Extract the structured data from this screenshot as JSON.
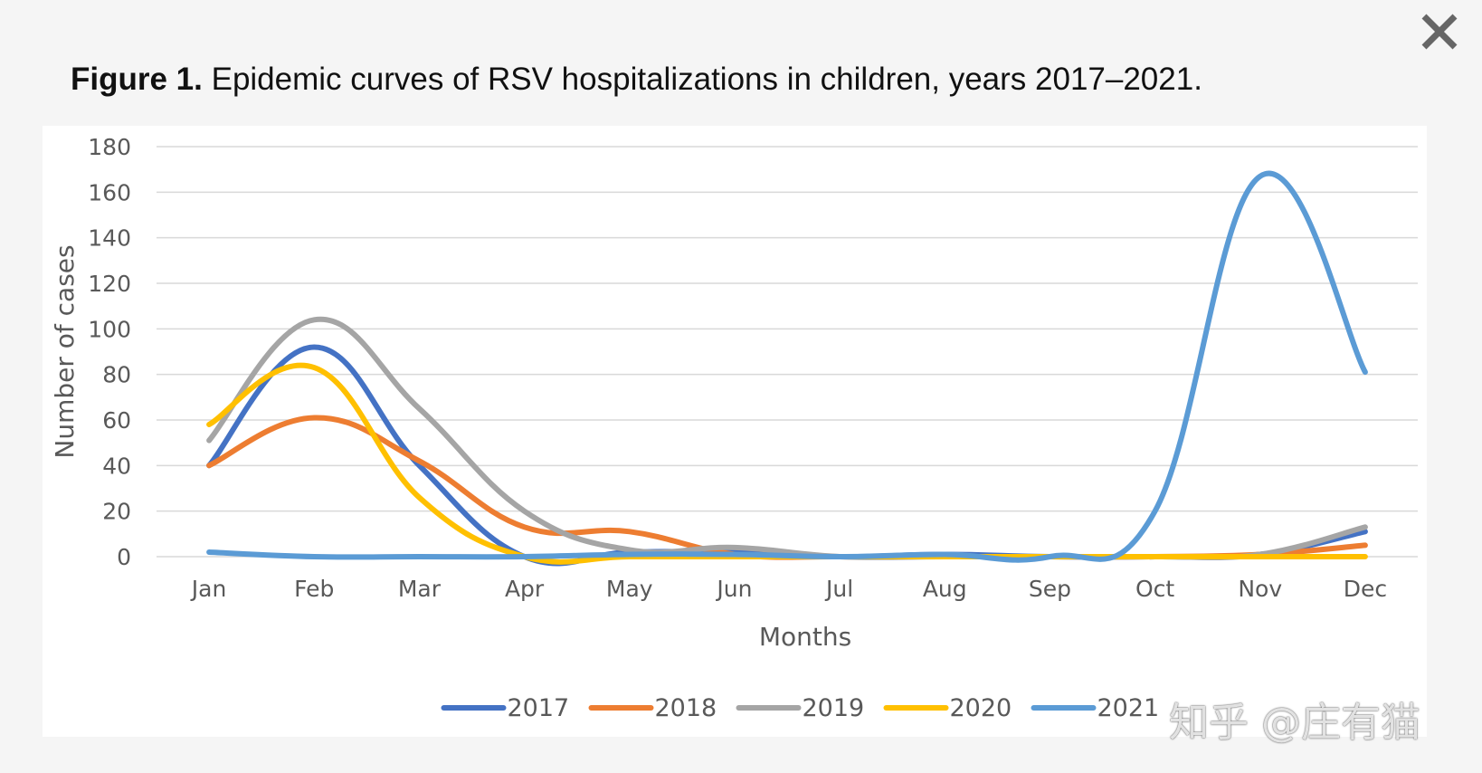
{
  "header": {
    "title_bold": "Figure 1.",
    "title_rest": " Epidemic curves of RSV hospitalizations in children, years 2017–2021."
  },
  "close_icon": "close-icon",
  "watermark": "知乎 @庄有猫",
  "chart_data": {
    "type": "line",
    "title": "Figure 1. Epidemic curves of RSV hospitalizations in children, years 2017–2021.",
    "xlabel": "Months",
    "ylabel": "Number of cases",
    "categories": [
      "Jan",
      "Feb",
      "Mar",
      "Apr",
      "May",
      "Jun",
      "Jul",
      "Aug",
      "Sep",
      "Oct",
      "Nov",
      "Dec"
    ],
    "ylim": [
      0,
      180
    ],
    "yticks": [
      0,
      20,
      40,
      60,
      80,
      100,
      120,
      140,
      160,
      180
    ],
    "grid": "horizontal",
    "legend": "bottom",
    "series": [
      {
        "name": "2017",
        "color": "#4472c4",
        "values": [
          40,
          92,
          40,
          0,
          2,
          2,
          0,
          1,
          0,
          0,
          1,
          11
        ]
      },
      {
        "name": "2018",
        "color": "#ed7d31",
        "values": [
          40,
          61,
          42,
          13,
          11,
          1,
          0,
          0,
          0,
          0,
          1,
          5
        ]
      },
      {
        "name": "2019",
        "color": "#a5a5a5",
        "values": [
          51,
          104,
          65,
          20,
          3,
          4,
          0,
          0,
          0,
          0,
          1,
          13
        ]
      },
      {
        "name": "2020",
        "color": "#ffc000",
        "values": [
          58,
          83,
          26,
          0,
          0,
          0,
          0,
          0,
          0,
          0,
          0,
          0
        ]
      },
      {
        "name": "2021",
        "color": "#5b9bd5",
        "values": [
          2,
          0,
          0,
          0,
          1,
          1,
          0,
          1,
          0,
          20,
          167,
          81
        ]
      }
    ]
  }
}
